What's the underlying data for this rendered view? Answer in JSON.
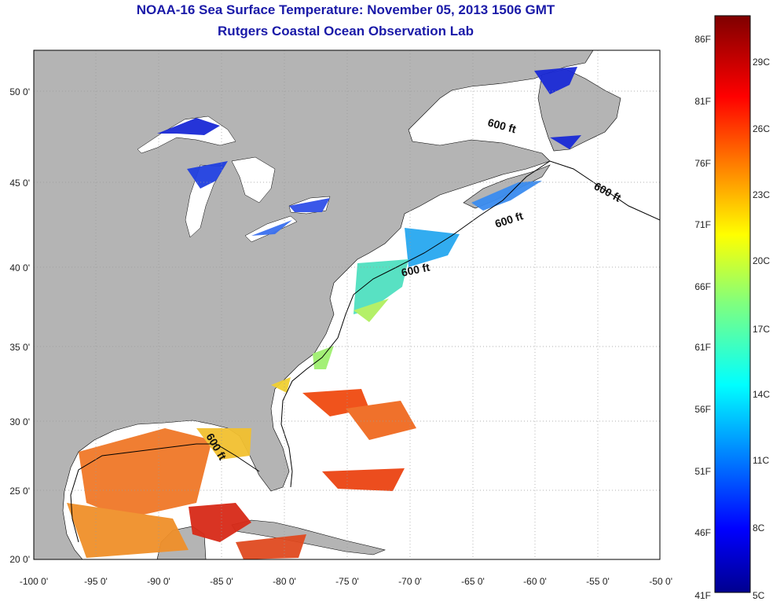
{
  "title": "NOAA-16 Sea Surface Temperature:  November 05, 2013 1506 GMT",
  "subtitle": "Rutgers Coastal Ocean Observation Lab",
  "axes": {
    "lon_ticks": [
      "-100 0'",
      "-95 0'",
      "-90 0'",
      "-85 0'",
      "-80 0'",
      "-75 0'",
      "-70 0'",
      "-65 0'",
      "-60 0'",
      "-55 0'",
      "-50 0'"
    ],
    "lat_ticks": [
      "20 0'",
      "25 0'",
      "30 0'",
      "35 0'",
      "40 0'",
      "45 0'",
      "50 0'"
    ]
  },
  "isobath_label": "600 ft",
  "colorbar": {
    "fahrenheit": [
      "86F",
      "81F",
      "76F",
      "71F",
      "66F",
      "61F",
      "56F",
      "51F",
      "46F",
      "41F"
    ],
    "celsius": [
      "29C",
      "26C",
      "23C",
      "20C",
      "17C",
      "14C",
      "11C",
      "8C",
      "5C"
    ]
  },
  "colors": {
    "land": "#b4b4b4",
    "title": "#1a1aa8"
  }
}
